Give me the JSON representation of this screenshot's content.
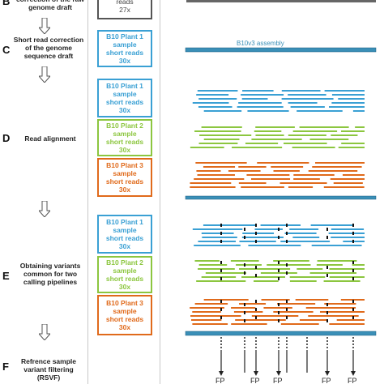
{
  "steps": [
    {
      "letter": "B",
      "text": "correction of the raw\ngenome draft"
    },
    {
      "letter": "C",
      "text": "Short read correction\nof the genome\nsequence draft"
    },
    {
      "letter": "D",
      "text": "Read alignment"
    },
    {
      "letter": "E",
      "text": "Obtaining variants\ncommon for two\ncalling pipelines"
    },
    {
      "letter": "F",
      "text": "Refrence sample\nvariant filtering\n(RSVF)"
    }
  ],
  "top_box": {
    "text": "reads\n27x"
  },
  "boxes_c": [
    {
      "text": "B10 Plant 1\nsample\nshort reads\n30x",
      "color": "#3aa0d4"
    }
  ],
  "boxes_d": [
    {
      "text": "B10 Plant 1\nsample\nshort reads\n30x",
      "color": "#3aa0d4"
    },
    {
      "text": "B10 Plant 2\nsample\nshort reads\n30x",
      "color": "#8cc63f"
    },
    {
      "text": "B10 Plant 3\nsample\nshort reads\n30x",
      "color": "#e06a1b"
    }
  ],
  "boxes_e": [
    {
      "text": "B10 Plant 1\nsample\nshort reads\n30x",
      "color": "#3aa0d4"
    },
    {
      "text": "B10 Plant 2\nsample\nshort reads\n30x",
      "color": "#8cc63f"
    },
    {
      "text": "B10 Plant 3\nsample\nshort reads\n30x",
      "color": "#e06a1b"
    }
  ],
  "assembly_label": "B10v3 assembly",
  "fp_label": "FP",
  "colors": {
    "blue": "#3aa0d4",
    "green": "#8cc63f",
    "orange": "#e06a1b",
    "bar": "#3a8fb7",
    "gray": "#555555"
  }
}
